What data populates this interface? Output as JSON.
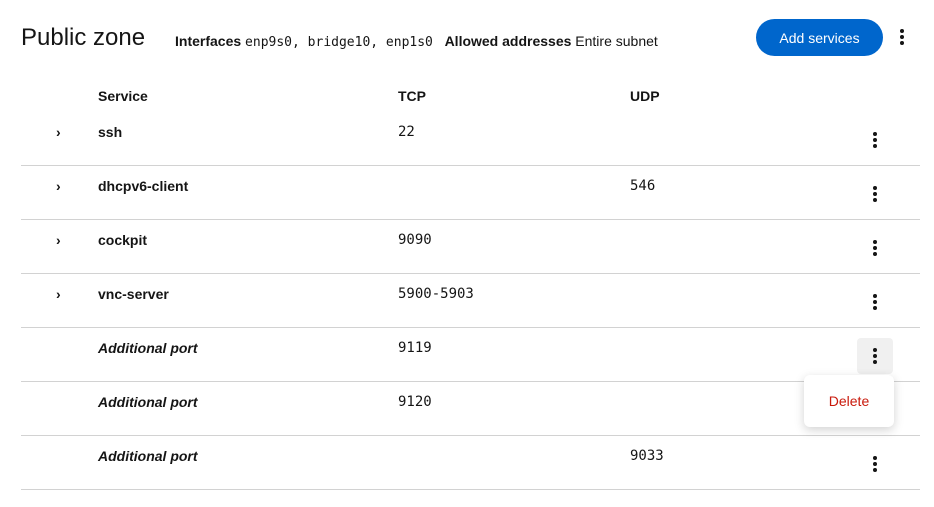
{
  "header": {
    "title": "Public zone",
    "interfaces_label": "Interfaces",
    "interfaces_value": "enp9s0, bridge10, enp1s0",
    "allowed_label": "Allowed addresses",
    "allowed_value": "Entire subnet",
    "add_button": "Add services"
  },
  "table": {
    "columns": [
      "Service",
      "TCP",
      "UDP"
    ],
    "rows": [
      {
        "service": "ssh",
        "tcp": "22",
        "udp": "",
        "expandable": true
      },
      {
        "service": "dhcpv6-client",
        "tcp": "",
        "udp": "546",
        "expandable": true
      },
      {
        "service": "cockpit",
        "tcp": "9090",
        "udp": "",
        "expandable": true
      },
      {
        "service": "vnc-server",
        "tcp": "5900-5903",
        "udp": "",
        "expandable": true
      },
      {
        "service": "Additional port",
        "tcp": "9119",
        "udp": "",
        "expandable": false
      },
      {
        "service": "Additional port",
        "tcp": "9120",
        "udp": "",
        "expandable": false
      },
      {
        "service": "Additional port",
        "tcp": "",
        "udp": "9033",
        "expandable": false
      }
    ]
  },
  "row_menu": {
    "delete_label": "Delete",
    "delete_color": "#c9190b"
  }
}
